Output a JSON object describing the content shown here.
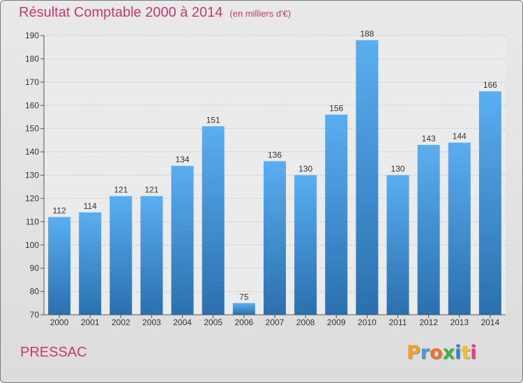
{
  "title": {
    "main": "Résultat Comptable 2000 à 2014",
    "unit": "(en milliers d'€)"
  },
  "commune": "PRESSAC",
  "logo": {
    "text": "Proxiti",
    "letter_colors": [
      "#f0a028",
      "#3aa0e0",
      "#f07030",
      "#40b040",
      "#3080d0",
      "#f0c030",
      "#e04080"
    ]
  },
  "colors": {
    "bar_top": "#5aaef0",
    "bar_bottom": "#2a70b0",
    "accent": "#c83a68"
  },
  "chart_data": {
    "type": "bar",
    "categories": [
      "2000",
      "2001",
      "2002",
      "2003",
      "2004",
      "2005",
      "2006",
      "2007",
      "2008",
      "2009",
      "2010",
      "2011",
      "2012",
      "2013",
      "2014"
    ],
    "values": [
      112,
      114,
      121,
      121,
      134,
      151,
      75,
      136,
      130,
      156,
      188,
      130,
      143,
      144,
      166
    ],
    "ylim": [
      70,
      190
    ],
    "yticks": [
      70,
      80,
      90,
      100,
      110,
      120,
      130,
      140,
      150,
      160,
      170,
      180,
      190
    ],
    "grid": true,
    "data_labels": true
  }
}
